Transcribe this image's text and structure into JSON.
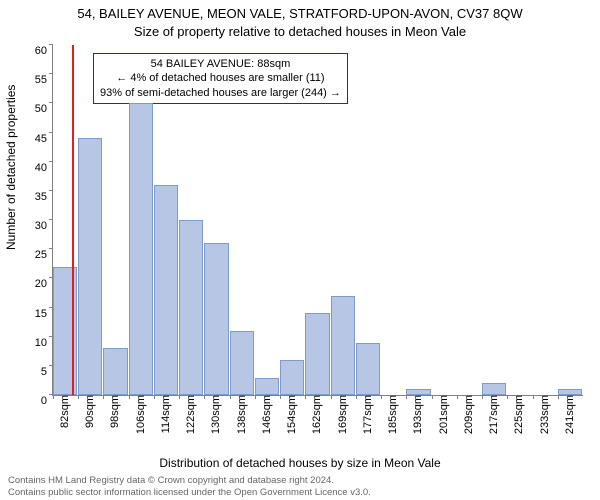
{
  "title_line1": "54, BAILEY AVENUE, MEON VALE, STRATFORD-UPON-AVON, CV37 8QW",
  "title_line2": "Size of property relative to detached houses in Meon Vale",
  "ylabel": "Number of detached properties",
  "xlabel": "Distribution of detached houses by size in Meon Vale",
  "chart": {
    "type": "histogram",
    "ylim": [
      0,
      60
    ],
    "ytick_step": 5,
    "yticks": [
      0,
      5,
      10,
      15,
      20,
      25,
      30,
      35,
      40,
      45,
      50,
      55,
      60
    ],
    "xticks": [
      "82sqm",
      "90sqm",
      "98sqm",
      "106sqm",
      "114sqm",
      "122sqm",
      "130sqm",
      "138sqm",
      "146sqm",
      "154sqm",
      "162sqm",
      "169sqm",
      "177sqm",
      "185sqm",
      "193sqm",
      "201sqm",
      "209sqm",
      "217sqm",
      "225sqm",
      "233sqm",
      "241sqm"
    ],
    "bar_values": [
      22,
      44,
      8,
      50,
      36,
      30,
      26,
      11,
      3,
      6,
      14,
      17,
      9,
      0,
      1,
      0,
      0,
      2,
      0,
      0,
      1
    ],
    "bar_color": "#b7c6e4",
    "bar_border": "#7f9bc9",
    "reference_line": {
      "index_pos": 0.75,
      "color": "#e02020"
    },
    "background_color": "#ffffff",
    "axis_color": "#808080",
    "tick_fontsize": 11,
    "label_fontsize": 12,
    "title_fontsize": 13
  },
  "annotation": {
    "line1": "54 BAILEY AVENUE: 88sqm",
    "line2": "← 4% of detached houses are smaller (11)",
    "line3": "93% of semi-detached houses are larger (244) →",
    "border_color": "#b00000"
  },
  "footer_line1": "Contains HM Land Registry data © Crown copyright and database right 2024.",
  "footer_line2": "Contains public sector information licensed under the Open Government Licence v3.0."
}
